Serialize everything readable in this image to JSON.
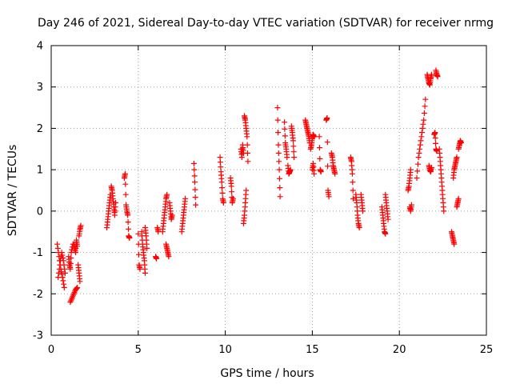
{
  "chart_data": {
    "type": "scatter",
    "title": "Day 246 of 2021, Sidereal Day-to-day VTEC variation (SDTVAR) for receiver nrmg",
    "xlabel": "GPS time / hours",
    "ylabel": "SDTVAR / TECUs",
    "xlim": [
      0,
      25
    ],
    "ylim": [
      -3,
      4
    ],
    "xticks": [
      0,
      5,
      10,
      15,
      20,
      25
    ],
    "yticks": [
      -3,
      -2,
      -1,
      0,
      1,
      2,
      3,
      4
    ],
    "grid": true,
    "marker": "plus",
    "marker_color": "#ff0000",
    "series": [
      {
        "name": "SDTVAR",
        "segments": [
          [
            [
              0.35,
              -0.8
            ],
            [
              0.45,
              -1.1
            ],
            [
              0.55,
              -1.4
            ],
            [
              0.65,
              -1.6
            ],
            [
              0.75,
              -1.85
            ]
          ],
          [
            [
              0.4,
              -1.6
            ],
            [
              0.5,
              -1.3
            ],
            [
              0.6,
              -1.0
            ],
            [
              0.7,
              -1.2
            ],
            [
              0.8,
              -1.5
            ]
          ],
          [
            [
              1.0,
              -1.1
            ],
            [
              1.05,
              -1.3
            ],
            [
              1.1,
              -1.4
            ],
            [
              1.15,
              -1.0
            ],
            [
              1.25,
              -0.8
            ]
          ],
          [
            [
              1.1,
              -2.2
            ],
            [
              1.2,
              -2.1
            ],
            [
              1.3,
              -2.0
            ],
            [
              1.4,
              -1.9
            ],
            [
              1.5,
              -1.85
            ]
          ],
          [
            [
              1.3,
              -0.8
            ],
            [
              1.35,
              -0.9
            ],
            [
              1.4,
              -1.0
            ],
            [
              1.45,
              -0.7
            ],
            [
              1.5,
              -0.85
            ]
          ],
          [
            [
              1.55,
              -1.3
            ],
            [
              1.6,
              -1.5
            ],
            [
              1.65,
              -1.7
            ]
          ],
          [
            [
              1.6,
              -0.6
            ],
            [
              1.65,
              -0.45
            ],
            [
              1.7,
              -0.35
            ]
          ],
          [
            [
              3.2,
              -0.4
            ],
            [
              3.25,
              -0.2
            ],
            [
              3.3,
              0.0
            ],
            [
              3.35,
              0.2
            ],
            [
              3.4,
              0.4
            ]
          ],
          [
            [
              3.45,
              0.6
            ],
            [
              3.5,
              0.5
            ],
            [
              3.55,
              0.3
            ],
            [
              3.6,
              0.1
            ],
            [
              3.65,
              -0.1
            ],
            [
              3.7,
              0.2
            ]
          ],
          [
            [
              4.2,
              0.8
            ],
            [
              4.25,
              0.9
            ],
            [
              4.3,
              0.15
            ],
            [
              4.35,
              0.0
            ],
            [
              4.4,
              -0.1
            ],
            [
              4.45,
              -0.6
            ],
            [
              4.5,
              -0.65
            ]
          ],
          [
            [
              5.0,
              -0.55
            ],
            [
              5.05,
              -1.3
            ],
            [
              5.1,
              -1.4
            ]
          ],
          [
            [
              5.2,
              -0.5
            ],
            [
              5.25,
              -0.8
            ],
            [
              5.3,
              -1.0
            ],
            [
              5.35,
              -1.2
            ],
            [
              5.4,
              -1.5
            ]
          ],
          [
            [
              5.4,
              -0.4
            ],
            [
              5.45,
              -0.6
            ],
            [
              5.5,
              -0.9
            ]
          ],
          [
            [
              6.0,
              -1.1
            ],
            [
              6.05,
              -1.15
            ]
          ],
          [
            [
              6.1,
              -0.4
            ],
            [
              6.15,
              -0.5
            ]
          ],
          [
            [
              6.4,
              -0.5
            ],
            [
              6.45,
              -0.3
            ],
            [
              6.5,
              -0.1
            ],
            [
              6.55,
              0.1
            ],
            [
              6.6,
              0.3
            ],
            [
              6.65,
              0.4
            ]
          ],
          [
            [
              6.6,
              -0.8
            ],
            [
              6.65,
              -0.9
            ],
            [
              6.7,
              -1.0
            ],
            [
              6.75,
              -1.1
            ]
          ],
          [
            [
              6.8,
              0.2
            ],
            [
              6.85,
              0.0
            ],
            [
              6.9,
              -0.2
            ],
            [
              6.95,
              -0.1
            ]
          ],
          [
            [
              7.5,
              -0.5
            ],
            [
              7.55,
              -0.3
            ],
            [
              7.6,
              -0.1
            ],
            [
              7.65,
              0.1
            ],
            [
              7.7,
              0.3
            ]
          ],
          [
            [
              8.2,
              1.15
            ],
            [
              8.25,
              0.7
            ],
            [
              8.3,
              0.15
            ]
          ],
          [
            [
              9.7,
              1.3
            ],
            [
              9.75,
              0.95
            ],
            [
              9.8,
              0.7
            ],
            [
              9.85,
              0.3
            ],
            [
              9.9,
              0.2
            ]
          ],
          [
            [
              10.3,
              0.8
            ],
            [
              10.35,
              0.6
            ],
            [
              10.4,
              0.2
            ],
            [
              10.45,
              0.3
            ]
          ],
          [
            [
              10.9,
              1.5
            ],
            [
              10.95,
              1.3
            ],
            [
              11.0,
              1.6
            ],
            [
              11.05,
              1.4
            ]
          ],
          [
            [
              11.05,
              -0.3
            ],
            [
              11.1,
              -0.1
            ],
            [
              11.15,
              0.2
            ],
            [
              11.2,
              0.5
            ]
          ],
          [
            [
              11.1,
              2.3
            ],
            [
              11.15,
              2.2
            ],
            [
              11.2,
              2.0
            ],
            [
              11.25,
              1.8
            ],
            [
              11.3,
              1.2
            ]
          ],
          [
            [
              13.0,
              2.5
            ],
            [
              13.05,
              1.6
            ],
            [
              13.1,
              1.0
            ],
            [
              13.15,
              0.35
            ]
          ],
          [
            [
              13.4,
              2.15
            ],
            [
              13.45,
              1.65
            ],
            [
              13.5,
              1.5
            ],
            [
              13.55,
              1.3
            ]
          ],
          [
            [
              13.6,
              1.1
            ],
            [
              13.65,
              0.9
            ],
            [
              13.7,
              0.95
            ],
            [
              13.75,
              1.0
            ]
          ],
          [
            [
              13.8,
              2.05
            ],
            [
              13.85,
              1.9
            ],
            [
              13.9,
              1.7
            ],
            [
              13.95,
              1.3
            ]
          ],
          [
            [
              14.6,
              2.2
            ],
            [
              14.65,
              2.1
            ],
            [
              14.7,
              2.0
            ],
            [
              14.75,
              1.9
            ],
            [
              14.8,
              1.8
            ],
            [
              14.85,
              1.65
            ]
          ],
          [
            [
              14.9,
              1.5
            ],
            [
              14.95,
              1.6
            ],
            [
              15.0,
              1.75
            ],
            [
              15.05,
              1.85
            ],
            [
              15.1,
              1.8
            ]
          ],
          [
            [
              15.0,
              1.0
            ],
            [
              15.05,
              1.15
            ],
            [
              15.1,
              0.9
            ]
          ],
          [
            [
              15.4,
              1.8
            ],
            [
              15.45,
              1.0
            ],
            [
              15.5,
              0.95
            ]
          ],
          [
            [
              15.8,
              2.2
            ],
            [
              15.85,
              2.25
            ],
            [
              15.9,
              0.5
            ],
            [
              15.95,
              0.35
            ]
          ],
          [
            [
              16.1,
              1.4
            ],
            [
              16.15,
              1.3
            ],
            [
              16.2,
              1.1
            ],
            [
              16.25,
              1.0
            ],
            [
              16.3,
              0.9
            ]
          ],
          [
            [
              17.2,
              1.3
            ],
            [
              17.25,
              1.2
            ],
            [
              17.3,
              0.9
            ],
            [
              17.35,
              0.3
            ]
          ],
          [
            [
              17.5,
              0.4
            ],
            [
              17.55,
              0.2
            ],
            [
              17.6,
              -0.1
            ],
            [
              17.65,
              -0.3
            ],
            [
              17.7,
              -0.4
            ]
          ],
          [
            [
              17.8,
              0.4
            ],
            [
              17.85,
              0.2
            ],
            [
              17.9,
              0.0
            ]
          ],
          [
            [
              19.0,
              0.1
            ],
            [
              19.05,
              -0.1
            ],
            [
              19.1,
              -0.3
            ],
            [
              19.15,
              -0.5
            ],
            [
              19.2,
              -0.55
            ]
          ],
          [
            [
              19.2,
              0.4
            ],
            [
              19.25,
              0.2
            ],
            [
              19.3,
              0.0
            ],
            [
              19.35,
              -0.2
            ]
          ],
          [
            [
              20.5,
              0.5
            ],
            [
              20.55,
              0.6
            ],
            [
              20.6,
              0.8
            ],
            [
              20.65,
              1.0
            ]
          ],
          [
            [
              20.6,
              0.1
            ],
            [
              20.65,
              0.0
            ],
            [
              20.7,
              0.15
            ]
          ],
          [
            [
              21.0,
              0.8
            ],
            [
              21.1,
              1.3
            ],
            [
              21.2,
              1.6
            ],
            [
              21.3,
              1.9
            ],
            [
              21.4,
              2.2
            ],
            [
              21.5,
              2.7
            ]
          ],
          [
            [
              21.6,
              3.3
            ],
            [
              21.65,
              3.2
            ],
            [
              21.7,
              3.1
            ],
            [
              21.75,
              3.05
            ],
            [
              21.8,
              3.2
            ],
            [
              21.85,
              3.3
            ]
          ],
          [
            [
              21.7,
              1.1
            ],
            [
              21.75,
              1.0
            ],
            [
              21.8,
              0.95
            ],
            [
              21.85,
              1.05
            ]
          ],
          [
            [
              22.1,
              3.4
            ],
            [
              22.15,
              3.3
            ],
            [
              22.2,
              3.25
            ]
          ],
          [
            [
              22.0,
              1.85
            ],
            [
              22.05,
              1.9
            ],
            [
              22.1,
              1.5
            ],
            [
              22.15,
              1.45
            ]
          ],
          [
            [
              22.3,
              1.5
            ],
            [
              22.35,
              1.2
            ],
            [
              22.4,
              0.9
            ],
            [
              22.45,
              0.6
            ],
            [
              22.5,
              0.3
            ],
            [
              22.55,
              0.0
            ]
          ],
          [
            [
              23.0,
              -0.5
            ],
            [
              23.05,
              -0.6
            ],
            [
              23.1,
              -0.7
            ],
            [
              23.15,
              -0.8
            ]
          ],
          [
            [
              23.1,
              0.8
            ],
            [
              23.15,
              1.0
            ],
            [
              23.2,
              1.1
            ],
            [
              23.25,
              1.2
            ],
            [
              23.3,
              1.3
            ]
          ],
          [
            [
              23.3,
              0.1
            ],
            [
              23.35,
              0.2
            ],
            [
              23.4,
              0.3
            ]
          ],
          [
            [
              23.4,
              1.5
            ],
            [
              23.45,
              1.6
            ],
            [
              23.5,
              1.7
            ],
            [
              23.55,
              1.65
            ]
          ]
        ]
      }
    ]
  }
}
